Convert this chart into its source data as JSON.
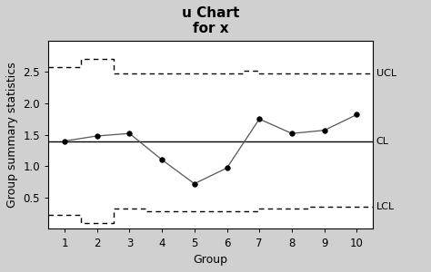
{
  "title": "u Chart\nfor x",
  "xlabel": "Group",
  "ylabel": "Group summary statistics",
  "background_color": "#d0d0d0",
  "plot_bg_color": "#ffffff",
  "groups": [
    1,
    2,
    3,
    4,
    5,
    6,
    7,
    8,
    9,
    10
  ],
  "data_points": [
    1.4,
    1.48,
    1.52,
    1.1,
    0.72,
    0.97,
    1.75,
    1.52,
    1.57,
    1.82
  ],
  "cl": 1.4,
  "ucl_x": [
    0.5,
    1.5,
    1.5,
    2.5,
    2.5,
    3.5,
    3.5,
    6.5,
    6.5,
    7.0,
    7.0,
    8.5,
    8.5,
    10.5
  ],
  "ucl_y": [
    2.57,
    2.57,
    2.7,
    2.7,
    2.47,
    2.47,
    2.47,
    2.47,
    2.52,
    2.52,
    2.47,
    2.47,
    2.47,
    2.47
  ],
  "lcl_x": [
    0.5,
    1.5,
    1.5,
    2.5,
    2.5,
    3.5,
    3.5,
    6.5,
    6.5,
    7.0,
    7.0,
    8.5,
    8.5,
    10.5
  ],
  "lcl_y": [
    0.23,
    0.23,
    0.1,
    0.1,
    0.33,
    0.33,
    0.28,
    0.28,
    0.28,
    0.28,
    0.33,
    0.33,
    0.35,
    0.35
  ],
  "ylim": [
    0.0,
    3.0
  ],
  "yticks": [
    0.5,
    1.0,
    1.5,
    2.0,
    2.5
  ],
  "xlim": [
    0.5,
    10.5
  ],
  "label_fontsize": 9,
  "title_fontsize": 11,
  "tick_fontsize": 8.5,
  "annot_fontsize": 8
}
